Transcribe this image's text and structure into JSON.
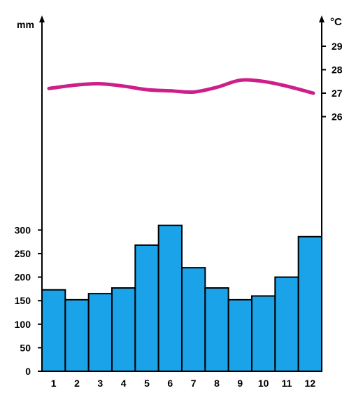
{
  "chart_data": {
    "type": "bar",
    "subtype": "climate-chart",
    "categories": [
      "1",
      "2",
      "3",
      "4",
      "5",
      "6",
      "7",
      "8",
      "9",
      "10",
      "11",
      "12"
    ],
    "series": [
      {
        "values": [
          173,
          152,
          165,
          177,
          268,
          310,
          220,
          177,
          152,
          160,
          200,
          286
        ],
        "kind": "bar",
        "axis": "left"
      },
      {
        "values": [
          27.2,
          27.35,
          27.4,
          27.3,
          27.15,
          27.1,
          27.05,
          27.25,
          27.55,
          27.5,
          27.3,
          27.0
        ],
        "kind": "line",
        "axis": "right"
      }
    ],
    "left_axis": {
      "unit": "mm",
      "range": [
        0,
        310
      ],
      "ticks": [
        "0",
        "50",
        "100",
        "150",
        "200",
        "250",
        "300"
      ]
    },
    "right_axis": {
      "unit": "°C",
      "range": [
        26,
        29
      ],
      "ticks": [
        "26",
        "27",
        "28",
        "29"
      ]
    },
    "colors": {
      "bars": "#1aa3e8",
      "bar_outline": "#000000",
      "line": "#cc1f8a"
    },
    "grid": false,
    "legend": "none"
  }
}
